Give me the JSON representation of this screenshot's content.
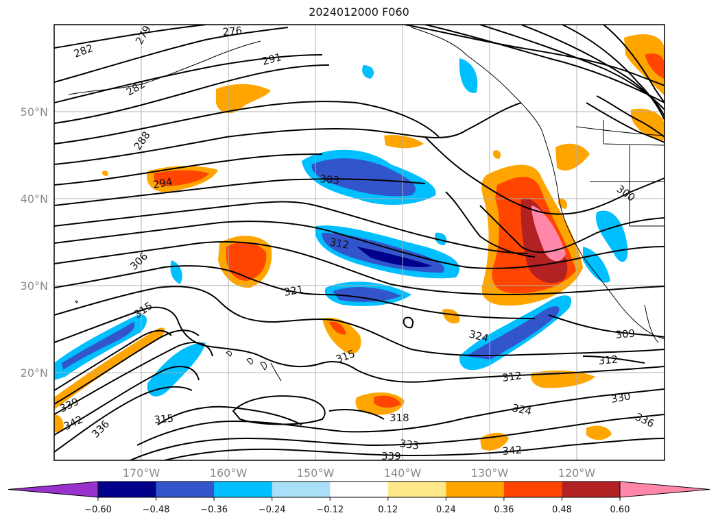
{
  "title": "2024012000 F060",
  "map": {
    "lat_labels": [
      "50°N",
      "40°N",
      "30°N",
      "20°N"
    ],
    "lon_labels": [
      "170°W",
      "160°W",
      "150°W",
      "140°W",
      "130°W",
      "120°W"
    ],
    "contour_labels": [
      "282",
      "279",
      "276",
      "291",
      "282",
      "288",
      "294",
      "303",
      "300",
      "312",
      "306",
      "321",
      "315",
      "315",
      "324",
      "315",
      "318",
      "312",
      "309",
      "312",
      "324",
      "330",
      "336",
      "333",
      "339",
      "342",
      "342",
      "339",
      "336"
    ]
  },
  "colorbar": {
    "ticks": [
      "−0.60",
      "−0.48",
      "−0.36",
      "−0.24",
      "−0.12",
      "0.12",
      "0.24",
      "0.36",
      "0.48",
      "0.60"
    ],
    "colors": [
      "#9932cc",
      "#00008b",
      "#3355cc",
      "#00bfff",
      "#aadff8",
      "#ffffff",
      "#ffe88a",
      "#ffa500",
      "#ff4500",
      "#b22222",
      "#ff88aa"
    ]
  }
}
